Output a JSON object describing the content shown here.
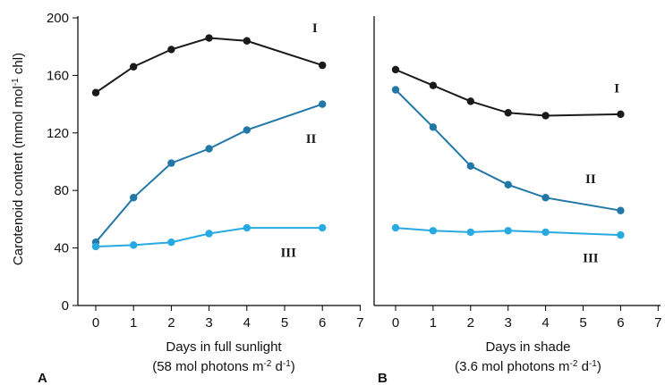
{
  "ylabel": "Carotenoid content (mmol mol",
  "ylabel_sup": "-1",
  "ylabel_end": " chl)",
  "chart_data": [
    {
      "type": "line",
      "panel": "A",
      "xlabel_line1": "Days in full sunlight",
      "xlabel_line2_parts": [
        "(58 mol photons m",
        "-2",
        " d",
        "-1",
        ")"
      ],
      "xticks": [
        0,
        1,
        2,
        3,
        4,
        5,
        6,
        7
      ],
      "yticks": [
        0,
        40,
        80,
        120,
        160,
        200
      ],
      "xlim": [
        -0.5,
        7
      ],
      "ylim": [
        0,
        200
      ],
      "series": [
        {
          "name": "I",
          "color": "#1a1a1a",
          "x": [
            0,
            1,
            2,
            3,
            4,
            6
          ],
          "y": [
            148,
            166,
            178,
            186,
            184,
            167
          ],
          "label_at": [
            5.8,
            190
          ]
        },
        {
          "name": "II",
          "color": "#2178a6",
          "x": [
            0,
            1,
            2,
            3,
            4,
            6
          ],
          "y": [
            44,
            75,
            99,
            109,
            122,
            140
          ],
          "label_at": [
            5.7,
            113
          ]
        },
        {
          "name": "III",
          "color": "#27a9e1",
          "x": [
            0,
            1,
            2,
            3,
            4,
            6
          ],
          "y": [
            41,
            42,
            44,
            50,
            54,
            54
          ],
          "label_at": [
            5.1,
            34
          ]
        }
      ]
    },
    {
      "type": "line",
      "panel": "B",
      "xlabel_line1": "Days in shade",
      "xlabel_line2_parts": [
        "(3.6 mol photons m",
        "-2",
        " d",
        "-1",
        ")"
      ],
      "xticks": [
        0,
        1,
        2,
        3,
        4,
        5,
        6,
        7
      ],
      "yticks": [],
      "xlim": [
        -0.5,
        7
      ],
      "ylim": [
        0,
        200
      ],
      "series": [
        {
          "name": "I",
          "color": "#1a1a1a",
          "x": [
            0,
            1,
            2,
            3,
            4,
            6
          ],
          "y": [
            164,
            153,
            142,
            134,
            132,
            133
          ],
          "label_at": [
            5.9,
            148
          ]
        },
        {
          "name": "II",
          "color": "#2178a6",
          "x": [
            0,
            1,
            2,
            3,
            4,
            6
          ],
          "y": [
            150,
            124,
            97,
            84,
            75,
            66
          ],
          "label_at": [
            5.2,
            85
          ]
        },
        {
          "name": "III",
          "color": "#27a9e1",
          "x": [
            0,
            1,
            2,
            3,
            4,
            6
          ],
          "y": [
            54,
            52,
            51,
            52,
            51,
            49
          ],
          "label_at": [
            5.2,
            30
          ]
        }
      ]
    }
  ]
}
